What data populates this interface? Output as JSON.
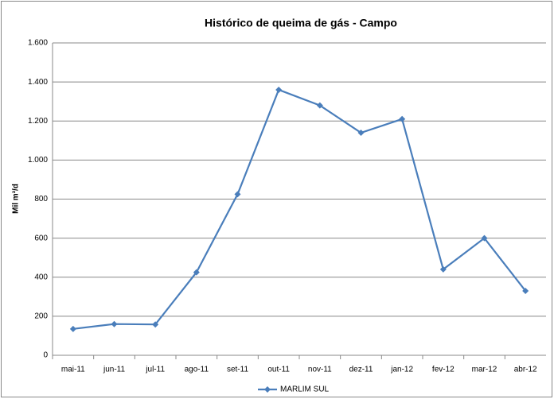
{
  "chart_data": {
    "type": "line",
    "title": "Histórico de queima de gás - Campo",
    "y_label": "Mil m³/d",
    "categories": [
      "mai-11",
      "jun-11",
      "jul-11",
      "ago-11",
      "set-11",
      "out-11",
      "nov-11",
      "dez-11",
      "jan-12",
      "fev-12",
      "mar-12",
      "abr-12"
    ],
    "series": [
      {
        "name": "MARLIM SUL",
        "color": "#4a7ebb",
        "values": [
          135,
          160,
          158,
          425,
          825,
          1360,
          1280,
          1140,
          1210,
          440,
          600,
          330
        ]
      }
    ],
    "ylim": [
      0,
      1600
    ],
    "yticks": [
      0,
      200,
      400,
      600,
      800,
      {
        "value": 1000,
        "label": "1.000"
      },
      {
        "value": 1200,
        "label": "1.200"
      },
      {
        "value": 1400,
        "label": "1.400"
      },
      {
        "value": 1600,
        "label": "1.600"
      }
    ],
    "grid": true,
    "legend": "bottom"
  }
}
